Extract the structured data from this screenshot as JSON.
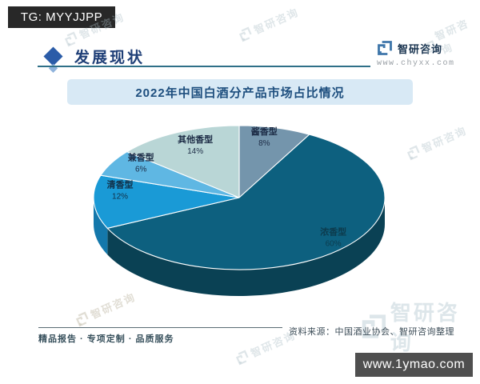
{
  "badges": {
    "top_left": "TG: MYYJJPP",
    "bottom_right": "www.1ymao.com"
  },
  "header": {
    "section_title": "发展现状",
    "brand_name": "智研咨询",
    "brand_url": "www.chyxx.com"
  },
  "chart": {
    "title": "2022年中国白酒分产品市场占比情况"
  },
  "footer": {
    "tagline": "精品报告 · 专项定制 · 品质服务",
    "source": "资料来源：中国酒业协会、智研咨询整理"
  },
  "watermark": {
    "text": "智研咨询"
  },
  "chart_data": {
    "type": "pie",
    "effect": "3d",
    "title": "2022年中国白酒分产品市场占比情况",
    "unit": "%",
    "start_angle_deg": 0,
    "direction": "clockwise",
    "labels": [
      "酱香型",
      "浓香型",
      "清香型",
      "兼香型",
      "其他香型"
    ],
    "values": [
      8,
      60,
      12,
      6,
      14
    ],
    "colors": [
      "#7495ac",
      "#0d607f",
      "#1a9ad6",
      "#5fb7e3",
      "#b9d6d6"
    ],
    "side_colors": [
      "#51718a",
      "#0a4154",
      "#1478ab",
      "#3f92bd",
      "#93b4b8"
    ],
    "label_colors": [
      "#1c2b45",
      "#0d3b4d",
      "#123048",
      "#1c2b45",
      "#1c2b45"
    ],
    "legend": "none"
  }
}
